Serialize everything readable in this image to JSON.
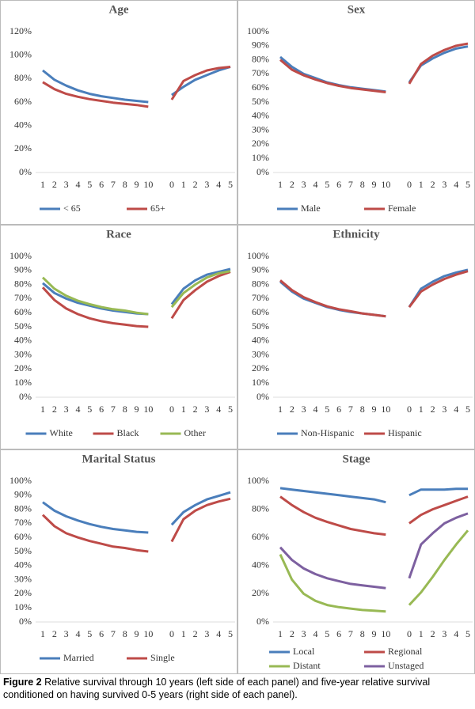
{
  "chart_data": [
    {
      "type": "line",
      "title": "Age",
      "categories": [
        "1",
        "2",
        "3",
        "4",
        "5",
        "6",
        "7",
        "8",
        "9",
        "10",
        null,
        "0",
        "1",
        "2",
        "3",
        "4",
        "5"
      ],
      "ylim": [
        0,
        120
      ],
      "yticks": [
        {
          "value": 0,
          "label": "0%"
        },
        {
          "value": 20,
          "label": "20%"
        },
        {
          "value": 40,
          "label": "40%"
        },
        {
          "value": 60,
          "label": "60%"
        },
        {
          "value": 80,
          "label": "80%"
        },
        {
          "value": 100,
          "label": "100%"
        },
        {
          "value": 120,
          "label": "120%"
        }
      ],
      "series": [
        {
          "name": "< 65",
          "color": "#4a7ebb",
          "values": [
            87,
            79,
            74,
            70,
            67,
            65,
            63.5,
            62,
            61,
            60,
            null,
            66,
            73,
            79,
            83,
            87,
            90
          ]
        },
        {
          "name": "65+",
          "color": "#be4b48",
          "values": [
            77,
            71,
            67,
            64.5,
            62.5,
            61,
            59.5,
            58.5,
            57.5,
            56,
            null,
            62,
            78,
            83,
            87,
            89,
            90
          ]
        }
      ]
    },
    {
      "type": "line",
      "title": "Sex",
      "categories": [
        "1",
        "2",
        "3",
        "4",
        "5",
        "6",
        "7",
        "8",
        "9",
        "10",
        null,
        "0",
        "1",
        "2",
        "3",
        "4",
        "5"
      ],
      "ylim": [
        0,
        100
      ],
      "yticks": [
        {
          "value": 0,
          "label": "0%"
        },
        {
          "value": 10,
          "label": "10%"
        },
        {
          "value": 20,
          "label": "20%"
        },
        {
          "value": 30,
          "label": "30%"
        },
        {
          "value": 40,
          "label": "40%"
        },
        {
          "value": 50,
          "label": "50%"
        },
        {
          "value": 60,
          "label": "60%"
        },
        {
          "value": 70,
          "label": "70%"
        },
        {
          "value": 80,
          "label": "80%"
        },
        {
          "value": 90,
          "label": "90%"
        },
        {
          "value": 100,
          "label": "100%"
        }
      ],
      "series": [
        {
          "name": "Male",
          "color": "#4a7ebb",
          "values": [
            82,
            75,
            70,
            67,
            64,
            62,
            60.5,
            59.5,
            58.5,
            57.5,
            null,
            64,
            76,
            81,
            85,
            88,
            89.5
          ]
        },
        {
          "name": "Female",
          "color": "#be4b48",
          "values": [
            80,
            73,
            69,
            66,
            63.5,
            61.5,
            60,
            59,
            58,
            57,
            null,
            63,
            77,
            83,
            87,
            90,
            91.5
          ]
        }
      ]
    },
    {
      "type": "line",
      "title": "Race",
      "categories": [
        "1",
        "2",
        "3",
        "4",
        "5",
        "6",
        "7",
        "8",
        "9",
        "10",
        null,
        "0",
        "1",
        "2",
        "3",
        "4",
        "5"
      ],
      "ylim": [
        0,
        100
      ],
      "yticks": [
        {
          "value": 0,
          "label": "0%"
        },
        {
          "value": 10,
          "label": "10%"
        },
        {
          "value": 20,
          "label": "20%"
        },
        {
          "value": 30,
          "label": "30%"
        },
        {
          "value": 40,
          "label": "40%"
        },
        {
          "value": 50,
          "label": "50%"
        },
        {
          "value": 60,
          "label": "60%"
        },
        {
          "value": 70,
          "label": "70%"
        },
        {
          "value": 80,
          "label": "80%"
        },
        {
          "value": 90,
          "label": "90%"
        },
        {
          "value": 100,
          "label": "100%"
        }
      ],
      "series": [
        {
          "name": "White",
          "color": "#4a7ebb",
          "values": [
            81,
            74,
            70,
            67,
            65,
            63,
            61.5,
            60.5,
            59.5,
            59,
            null,
            66,
            77,
            83,
            87,
            89,
            91
          ]
        },
        {
          "name": "Black",
          "color": "#be4b48",
          "values": [
            78,
            69,
            63,
            59,
            56,
            54,
            52.5,
            51.5,
            50.5,
            50,
            null,
            56,
            69,
            76,
            82,
            86,
            89
          ]
        },
        {
          "name": "Other",
          "color": "#98b954",
          "values": [
            85,
            77,
            72,
            68.5,
            66,
            64,
            62.5,
            61.5,
            60,
            59,
            null,
            64,
            74,
            80,
            85,
            88,
            89.5
          ]
        }
      ]
    },
    {
      "type": "line",
      "title": "Ethnicity",
      "categories": [
        "1",
        "2",
        "3",
        "4",
        "5",
        "6",
        "7",
        "8",
        "9",
        "10",
        null,
        "0",
        "1",
        "2",
        "3",
        "4",
        "5"
      ],
      "ylim": [
        0,
        100
      ],
      "yticks": [
        {
          "value": 0,
          "label": "0%"
        },
        {
          "value": 10,
          "label": "10%"
        },
        {
          "value": 20,
          "label": "20%"
        },
        {
          "value": 30,
          "label": "30%"
        },
        {
          "value": 40,
          "label": "40%"
        },
        {
          "value": 50,
          "label": "50%"
        },
        {
          "value": 60,
          "label": "60%"
        },
        {
          "value": 70,
          "label": "70%"
        },
        {
          "value": 80,
          "label": "80%"
        },
        {
          "value": 90,
          "label": "90%"
        },
        {
          "value": 100,
          "label": "100%"
        }
      ],
      "series": [
        {
          "name": "Non-Hispanic",
          "color": "#4a7ebb",
          "values": [
            82,
            75,
            70,
            67,
            64,
            62,
            60.5,
            59.5,
            58.5,
            57.5,
            null,
            64,
            77,
            82,
            86,
            88.5,
            90.5
          ]
        },
        {
          "name": "Hispanic",
          "color": "#be4b48",
          "values": [
            83,
            76,
            71,
            67.5,
            64.5,
            62.5,
            61,
            59.5,
            58.5,
            57.5,
            null,
            64,
            75,
            80,
            84,
            87,
            89.5
          ]
        }
      ]
    },
    {
      "type": "line",
      "title": "Marital Status",
      "categories": [
        "1",
        "2",
        "3",
        "4",
        "5",
        "6",
        "7",
        "8",
        "9",
        "10",
        null,
        "0",
        "1",
        "2",
        "3",
        "4",
        "5"
      ],
      "ylim": [
        0,
        100
      ],
      "yticks": [
        {
          "value": 0,
          "label": "0%"
        },
        {
          "value": 10,
          "label": "10%"
        },
        {
          "value": 20,
          "label": "20%"
        },
        {
          "value": 30,
          "label": "30%"
        },
        {
          "value": 40,
          "label": "40%"
        },
        {
          "value": 50,
          "label": "50%"
        },
        {
          "value": 60,
          "label": "60%"
        },
        {
          "value": 70,
          "label": "70%"
        },
        {
          "value": 80,
          "label": "80%"
        },
        {
          "value": 90,
          "label": "90%"
        },
        {
          "value": 100,
          "label": "100%"
        }
      ],
      "series": [
        {
          "name": "Married",
          "color": "#4a7ebb",
          "values": [
            85,
            79,
            75,
            72,
            69.5,
            67.5,
            66,
            65,
            64,
            63.5,
            null,
            69,
            78,
            83,
            87,
            89.5,
            92
          ]
        },
        {
          "name": "Single",
          "color": "#be4b48",
          "values": [
            76,
            68,
            63,
            60,
            57.5,
            55.5,
            53.5,
            52.5,
            51,
            50,
            null,
            57,
            73,
            79,
            83,
            85.5,
            87.5
          ]
        }
      ]
    },
    {
      "type": "line",
      "title": "Stage",
      "categories": [
        "1",
        "2",
        "3",
        "4",
        "5",
        "6",
        "7",
        "8",
        "9",
        "10",
        null,
        "0",
        "1",
        "2",
        "3",
        "4",
        "5"
      ],
      "ylim": [
        0,
        100
      ],
      "yticks": [
        {
          "value": 0,
          "label": "0%"
        },
        {
          "value": 20,
          "label": "20%"
        },
        {
          "value": 40,
          "label": "40%"
        },
        {
          "value": 60,
          "label": "60%"
        },
        {
          "value": 80,
          "label": "80%"
        },
        {
          "value": 100,
          "label": "100%"
        }
      ],
      "series": [
        {
          "name": "Local",
          "color": "#4a7ebb",
          "values": [
            95,
            94,
            93,
            92,
            91,
            90,
            89,
            88,
            87,
            85,
            null,
            90,
            94,
            94,
            94,
            94.5,
            94.5
          ]
        },
        {
          "name": "Regional",
          "color": "#be4b48",
          "values": [
            89,
            83,
            78,
            74,
            71,
            68.5,
            66,
            64.5,
            63,
            62,
            null,
            70,
            76,
            80,
            83,
            86,
            89
          ]
        },
        {
          "name": "Distant",
          "color": "#98b954",
          "values": [
            48,
            30,
            20,
            15,
            12,
            10.5,
            9.5,
            8.5,
            8,
            7.5,
            null,
            12,
            21,
            32,
            44,
            55,
            65
          ]
        },
        {
          "name": "Unstaged",
          "color": "#7d60a0",
          "values": [
            53,
            44,
            38,
            34,
            31,
            29,
            27,
            26,
            25,
            24,
            null,
            31,
            55,
            63,
            70,
            74,
            77
          ]
        }
      ]
    }
  ],
  "caption": {
    "label": "Figure 2",
    "text": "Relative survival through 10 years (left side of each panel) and five-year relative survival conditioned on having survived 0-5 years (right side of each panel)."
  }
}
